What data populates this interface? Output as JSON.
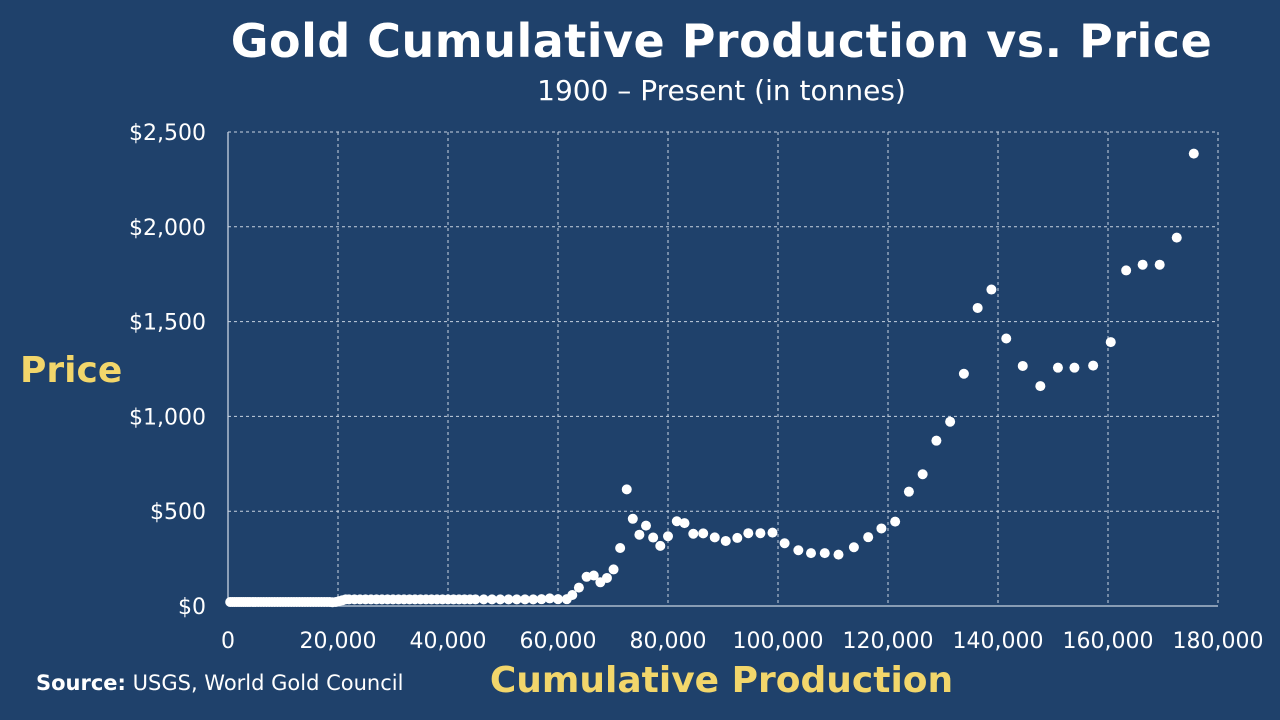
{
  "chart_data": {
    "type": "scatter",
    "title": "Gold Cumulative Production vs. Price",
    "subtitle": "1900 – Present (in tonnes)",
    "xlabel": "Cumulative Production",
    "ylabel": "Price",
    "xlim": [
      0,
      180000
    ],
    "ylim": [
      0,
      2500
    ],
    "x_ticks": [
      0,
      20000,
      40000,
      60000,
      80000,
      100000,
      120000,
      140000,
      160000,
      180000
    ],
    "x_tick_labels": [
      "0",
      "20,000",
      "40,000",
      "60,000",
      "80,000",
      "100,000",
      "120,000",
      "140,000",
      "160,000",
      "180,000"
    ],
    "y_ticks": [
      0,
      500,
      1000,
      1500,
      2000,
      2500
    ],
    "y_tick_labels": [
      "$0",
      "$500",
      "$1,000",
      "$1,500",
      "$2,000",
      "$2,500"
    ],
    "grid": true,
    "colors": {
      "background": "#1f416b",
      "points": "#ffffff",
      "grid": "#c8d2e0",
      "axis_title": "#f2d66b"
    },
    "points": [
      {
        "x": 400,
        "y": 21
      },
      {
        "x": 800,
        "y": 21
      },
      {
        "x": 1200,
        "y": 21
      },
      {
        "x": 1600,
        "y": 21
      },
      {
        "x": 2000,
        "y": 21
      },
      {
        "x": 2400,
        "y": 21
      },
      {
        "x": 2800,
        "y": 21
      },
      {
        "x": 3200,
        "y": 21
      },
      {
        "x": 3600,
        "y": 21
      },
      {
        "x": 4000,
        "y": 21
      },
      {
        "x": 4500,
        "y": 21
      },
      {
        "x": 5000,
        "y": 21
      },
      {
        "x": 5500,
        "y": 21
      },
      {
        "x": 6000,
        "y": 21
      },
      {
        "x": 6500,
        "y": 21
      },
      {
        "x": 7000,
        "y": 21
      },
      {
        "x": 7500,
        "y": 21
      },
      {
        "x": 8000,
        "y": 21
      },
      {
        "x": 8500,
        "y": 21
      },
      {
        "x": 9000,
        "y": 21
      },
      {
        "x": 9500,
        "y": 21
      },
      {
        "x": 10000,
        "y": 21
      },
      {
        "x": 10500,
        "y": 21
      },
      {
        "x": 11000,
        "y": 21
      },
      {
        "x": 11500,
        "y": 21
      },
      {
        "x": 12000,
        "y": 21
      },
      {
        "x": 12500,
        "y": 21
      },
      {
        "x": 13000,
        "y": 21
      },
      {
        "x": 13500,
        "y": 21
      },
      {
        "x": 14000,
        "y": 21
      },
      {
        "x": 14500,
        "y": 21
      },
      {
        "x": 15000,
        "y": 21
      },
      {
        "x": 15500,
        "y": 21
      },
      {
        "x": 16000,
        "y": 21
      },
      {
        "x": 16500,
        "y": 21
      },
      {
        "x": 17000,
        "y": 21
      },
      {
        "x": 17500,
        "y": 21
      },
      {
        "x": 18000,
        "y": 21
      },
      {
        "x": 18500,
        "y": 21
      },
      {
        "x": 19000,
        "y": 20
      },
      {
        "x": 19600,
        "y": 21
      },
      {
        "x": 20200,
        "y": 26
      },
      {
        "x": 20800,
        "y": 30
      },
      {
        "x": 21400,
        "y": 35
      },
      {
        "x": 22000,
        "y": 35
      },
      {
        "x": 23000,
        "y": 35
      },
      {
        "x": 24000,
        "y": 35
      },
      {
        "x": 25000,
        "y": 35
      },
      {
        "x": 26000,
        "y": 35
      },
      {
        "x": 27000,
        "y": 35
      },
      {
        "x": 28000,
        "y": 35
      },
      {
        "x": 29000,
        "y": 35
      },
      {
        "x": 30000,
        "y": 35
      },
      {
        "x": 31000,
        "y": 35
      },
      {
        "x": 32000,
        "y": 35
      },
      {
        "x": 33000,
        "y": 35
      },
      {
        "x": 34000,
        "y": 35
      },
      {
        "x": 35000,
        "y": 35
      },
      {
        "x": 36000,
        "y": 35
      },
      {
        "x": 37000,
        "y": 35
      },
      {
        "x": 38000,
        "y": 35
      },
      {
        "x": 39000,
        "y": 35
      },
      {
        "x": 40000,
        "y": 35
      },
      {
        "x": 41000,
        "y": 35
      },
      {
        "x": 42000,
        "y": 35
      },
      {
        "x": 43000,
        "y": 35
      },
      {
        "x": 44000,
        "y": 35
      },
      {
        "x": 45000,
        "y": 35
      },
      {
        "x": 46500,
        "y": 35
      },
      {
        "x": 48000,
        "y": 35
      },
      {
        "x": 49500,
        "y": 35
      },
      {
        "x": 51000,
        "y": 35
      },
      {
        "x": 52500,
        "y": 35
      },
      {
        "x": 54000,
        "y": 35
      },
      {
        "x": 55500,
        "y": 35
      },
      {
        "x": 57000,
        "y": 36
      },
      {
        "x": 58500,
        "y": 40
      },
      {
        "x": 60000,
        "y": 36
      },
      {
        "x": 61600,
        "y": 36
      },
      {
        "x": 62600,
        "y": 58
      },
      {
        "x": 63800,
        "y": 97
      },
      {
        "x": 65200,
        "y": 154
      },
      {
        "x": 66500,
        "y": 161
      },
      {
        "x": 67700,
        "y": 125
      },
      {
        "x": 68900,
        "y": 148
      },
      {
        "x": 70100,
        "y": 193
      },
      {
        "x": 71300,
        "y": 306
      },
      {
        "x": 72500,
        "y": 615
      },
      {
        "x": 73600,
        "y": 460
      },
      {
        "x": 74800,
        "y": 376
      },
      {
        "x": 76000,
        "y": 424
      },
      {
        "x": 77300,
        "y": 361
      },
      {
        "x": 78600,
        "y": 317
      },
      {
        "x": 80000,
        "y": 368
      },
      {
        "x": 81600,
        "y": 447
      },
      {
        "x": 83000,
        "y": 437
      },
      {
        "x": 84600,
        "y": 381
      },
      {
        "x": 86400,
        "y": 383
      },
      {
        "x": 88500,
        "y": 362
      },
      {
        "x": 90500,
        "y": 343
      },
      {
        "x": 92600,
        "y": 359
      },
      {
        "x": 94600,
        "y": 384
      },
      {
        "x": 96800,
        "y": 384
      },
      {
        "x": 99000,
        "y": 387
      },
      {
        "x": 101200,
        "y": 331
      },
      {
        "x": 103700,
        "y": 294
      },
      {
        "x": 106000,
        "y": 279
      },
      {
        "x": 108500,
        "y": 279
      },
      {
        "x": 111000,
        "y": 271
      },
      {
        "x": 113800,
        "y": 310
      },
      {
        "x": 116400,
        "y": 363
      },
      {
        "x": 118800,
        "y": 409
      },
      {
        "x": 121300,
        "y": 445
      },
      {
        "x": 123800,
        "y": 603
      },
      {
        "x": 126300,
        "y": 695
      },
      {
        "x": 128800,
        "y": 872
      },
      {
        "x": 131300,
        "y": 972
      },
      {
        "x": 133800,
        "y": 1225
      },
      {
        "x": 136300,
        "y": 1572
      },
      {
        "x": 138800,
        "y": 1669
      },
      {
        "x": 141500,
        "y": 1411
      },
      {
        "x": 144500,
        "y": 1266
      },
      {
        "x": 147700,
        "y": 1160
      },
      {
        "x": 150900,
        "y": 1257
      },
      {
        "x": 153900,
        "y": 1257
      },
      {
        "x": 157300,
        "y": 1268
      },
      {
        "x": 160500,
        "y": 1392
      },
      {
        "x": 163300,
        "y": 1770
      },
      {
        "x": 166300,
        "y": 1800
      },
      {
        "x": 169400,
        "y": 1800
      },
      {
        "x": 172500,
        "y": 1943
      },
      {
        "x": 175600,
        "y": 2386
      }
    ]
  },
  "source": {
    "prefix": "Source:",
    "text": "USGS, World Gold Council"
  }
}
